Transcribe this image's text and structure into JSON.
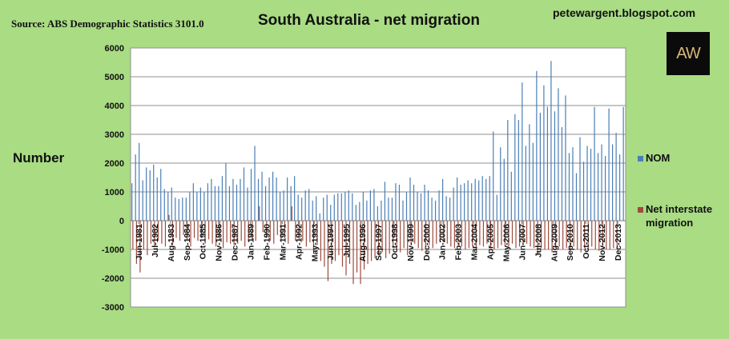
{
  "header": {
    "source": "Source: ABS Demographic Statistics 3101.0",
    "blog": "petewargent.blogspot.com",
    "logo": "AW"
  },
  "colors": {
    "background": "#a9dc83",
    "nom": "#4a7eb6",
    "interstate": "#9e4a3c"
  },
  "chart_data": {
    "type": "bar",
    "title": "South Australia - net migration",
    "ylabel": "Number",
    "ylim": [
      -3000,
      6000
    ],
    "yticks": [
      -3000,
      -2000,
      -1000,
      0,
      1000,
      2000,
      3000,
      4000,
      5000,
      6000
    ],
    "xtick_labels": [
      "Jun-1981",
      "Jul-1982",
      "Aug-1983",
      "Sep-1984",
      "Oct-1985",
      "Nov-1986",
      "Dec-1987",
      "Jan-1989",
      "Feb-1990",
      "Mar-1991",
      "Apr-1992",
      "May-1993",
      "Jun-1994",
      "Jul-1995",
      "Aug-1996",
      "Sep-1997",
      "Oct-1998",
      "Nov-1999",
      "Dec-2000",
      "Jan-2002",
      "Feb-2003",
      "Mar-2004",
      "Apr-2005",
      "May-2006",
      "Jun-2007",
      "Jul-2008",
      "Aug-2009",
      "Sep-2010",
      "Oct-2011",
      "Nov-2012",
      "Dec-2013"
    ],
    "grid": true,
    "legend_position": "right",
    "series": [
      {
        "name": "NOM",
        "color": "#4a7eb6",
        "values": [
          1300,
          2300,
          2700,
          1400,
          1850,
          1750,
          1950,
          1500,
          1800,
          1100,
          1000,
          1150,
          800,
          750,
          800,
          800,
          1000,
          1300,
          1000,
          1150,
          1000,
          1300,
          1450,
          1200,
          1200,
          1550,
          2000,
          1200,
          1450,
          1250,
          1450,
          1850,
          1150,
          1800,
          2600,
          1450,
          1700,
          1200,
          1500,
          1700,
          1500,
          1000,
          1050,
          1500,
          1200,
          1550,
          900,
          800,
          1050,
          1100,
          700,
          850,
          250,
          800,
          900,
          550,
          900,
          950,
          950,
          1000,
          1050,
          950,
          550,
          650,
          1000,
          700,
          1050,
          1100,
          500,
          700,
          1350,
          800,
          800,
          1300,
          1250,
          700,
          1000,
          1500,
          1250,
          1000,
          950,
          1250,
          1050,
          800,
          700,
          1050,
          1450,
          850,
          800,
          1150,
          1500,
          1250,
          1300,
          1400,
          1300,
          1450,
          1400,
          1550,
          1450,
          1550,
          3100,
          900,
          2550,
          2150,
          3500,
          1700,
          3700,
          3500,
          4800,
          2600,
          3350,
          2700,
          5200,
          3750,
          4700,
          3950,
          5550,
          3800,
          4600,
          3250,
          4350,
          2350,
          2550,
          1650,
          2900,
          2050,
          2600,
          2500,
          3950,
          2350,
          2650,
          2250,
          3900,
          2650,
          3050,
          2300,
          3950
        ]
      },
      {
        "name": "Net interstate migration",
        "color": "#9e4a3c",
        "values": [
          -1000,
          -1500,
          -1800,
          -1000,
          -1200,
          -800,
          -900,
          -700,
          -800,
          -900,
          200,
          -850,
          -600,
          -700,
          -500,
          -700,
          -900,
          -600,
          -700,
          -600,
          -800,
          -650,
          -800,
          -900,
          -700,
          -950,
          -750,
          -800,
          -850,
          -800,
          -700,
          -900,
          -750,
          -650,
          -700,
          500,
          -400,
          -600,
          -700,
          -800,
          -500,
          -700,
          -600,
          -800,
          500,
          -700,
          -650,
          -700,
          -900,
          -750,
          -1100,
          -850,
          -1400,
          -1600,
          -2100,
          -1500,
          -1400,
          -1200,
          -1600,
          -1900,
          -1500,
          -2200,
          -1800,
          -2200,
          -1700,
          -1500,
          -1400,
          -1300,
          -1200,
          -1100,
          -1300,
          -1150,
          -900,
          -1000,
          -1100,
          -950,
          -1200,
          -850,
          -800,
          -950,
          -1050,
          -900,
          -850,
          -950,
          -800,
          -750,
          -700,
          -800,
          -900,
          -950,
          -850,
          -900,
          -1000,
          -950,
          -900,
          -1000,
          -850,
          -900,
          -800,
          -950,
          -1000,
          -950,
          -850,
          -900,
          -900,
          -800,
          -950,
          -900,
          -850,
          -800,
          -900,
          -950,
          -1200,
          -950,
          -1000,
          -1000,
          -1100,
          -950,
          -900,
          -1000,
          -950,
          -1050,
          -900,
          -1000,
          -1100,
          -950,
          -1000,
          -900,
          -1000,
          -1050,
          -900,
          -1000,
          -1000,
          -950,
          -1000
        ]
      }
    ]
  }
}
